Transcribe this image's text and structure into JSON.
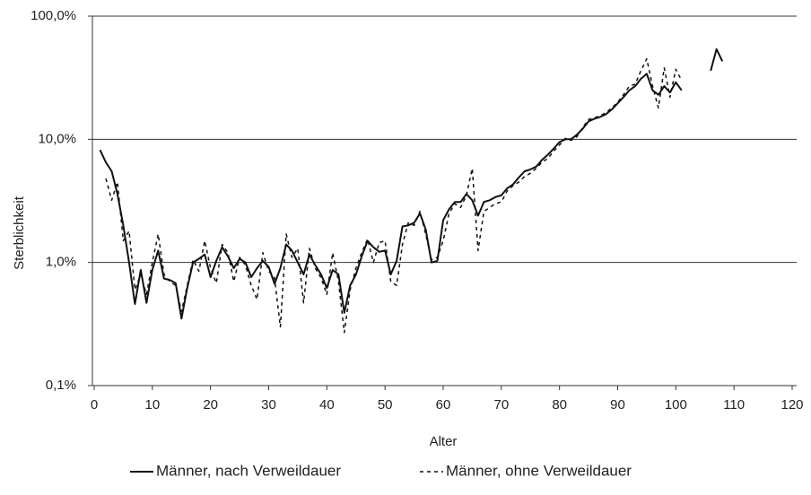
{
  "chart_data": {
    "type": "line",
    "xlabel": "Alter",
    "ylabel": "Sterblichkeit",
    "xlim": [
      0,
      120
    ],
    "xticks": [
      0,
      10,
      20,
      30,
      40,
      50,
      60,
      70,
      80,
      90,
      100,
      110,
      120
    ],
    "ylim": [
      0.1,
      100
    ],
    "yscale": "log",
    "yticks": [
      {
        "value": 0.1,
        "label": "0,1%"
      },
      {
        "value": 1,
        "label": "1,0%"
      },
      {
        "value": 10,
        "label": "10,0%"
      },
      {
        "value": 100,
        "label": "100,0%"
      }
    ],
    "grid": true,
    "legend": "bottom",
    "x": [
      1,
      2,
      3,
      4,
      5,
      6,
      7,
      8,
      9,
      10,
      11,
      12,
      13,
      14,
      15,
      16,
      17,
      18,
      19,
      20,
      21,
      22,
      23,
      24,
      25,
      26,
      27,
      28,
      29,
      30,
      31,
      32,
      33,
      34,
      35,
      36,
      37,
      38,
      39,
      40,
      41,
      42,
      43,
      44,
      45,
      46,
      47,
      48,
      49,
      50,
      51,
      52,
      53,
      54,
      55,
      56,
      57,
      58,
      59,
      60,
      61,
      62,
      63,
      64,
      65,
      66,
      67,
      68,
      69,
      70,
      71,
      72,
      73,
      74,
      75,
      76,
      77,
      78,
      79,
      80,
      81,
      82,
      83,
      84,
      85,
      86,
      87,
      88,
      89,
      90,
      91,
      92,
      93,
      94,
      95,
      96,
      97,
      98,
      99,
      100,
      101,
      102,
      103,
      104,
      105,
      106,
      107,
      108
    ],
    "series": [
      {
        "name": "Männer, nach Verweildauer",
        "color": "#111111",
        "dash": false,
        "values": [
          8.2,
          6.5,
          5.5,
          3.6,
          2.0,
          1.0,
          0.46,
          0.87,
          0.47,
          0.87,
          1.25,
          0.74,
          0.72,
          0.68,
          0.35,
          0.62,
          1.0,
          1.07,
          1.16,
          0.76,
          1.03,
          1.33,
          1.12,
          0.9,
          1.07,
          1.0,
          0.76,
          0.9,
          1.03,
          0.92,
          0.67,
          0.9,
          1.4,
          1.25,
          1.0,
          0.8,
          1.16,
          0.95,
          0.8,
          0.62,
          0.87,
          0.8,
          0.39,
          0.65,
          0.8,
          1.12,
          1.5,
          1.33,
          1.22,
          1.25,
          0.8,
          1.03,
          1.96,
          2.0,
          2.1,
          2.5,
          1.86,
          1.0,
          1.03,
          2.2,
          2.7,
          3.1,
          3.1,
          3.6,
          3.2,
          2.4,
          3.1,
          3.2,
          3.4,
          3.5,
          4.0,
          4.3,
          4.9,
          5.5,
          5.7,
          6.0,
          6.8,
          7.5,
          8.4,
          9.5,
          10,
          10,
          10.9,
          12.2,
          14,
          14.7,
          15.2,
          16,
          17.5,
          19.6,
          22,
          25,
          27,
          31,
          34,
          25,
          23,
          27,
          24,
          29,
          25,
          null,
          null,
          null,
          null,
          36,
          54,
          43
        ]
      },
      {
        "name": "Männer, ohne Verweildauer",
        "color": "#111111",
        "dash": true,
        "values": [
          null,
          4.8,
          3.2,
          4.5,
          1.5,
          1.8,
          0.6,
          0.8,
          0.55,
          1.0,
          1.7,
          0.8,
          0.7,
          0.65,
          0.4,
          0.65,
          1.05,
          0.85,
          1.5,
          0.9,
          0.68,
          1.4,
          1.2,
          0.7,
          1.1,
          0.95,
          0.65,
          0.5,
          1.2,
          0.85,
          0.75,
          0.3,
          1.7,
          1.1,
          1.3,
          0.47,
          1.3,
          0.9,
          0.75,
          0.55,
          1.2,
          0.7,
          0.27,
          0.6,
          0.9,
          1.2,
          1.55,
          1.0,
          1.45,
          1.5,
          0.7,
          0.65,
          1.4,
          2.1,
          2.0,
          2.6,
          1.7,
          1.05,
          1.1,
          1.5,
          2.5,
          3.0,
          2.8,
          3.5,
          5.8,
          1.25,
          2.6,
          2.8,
          3.0,
          3.1,
          3.8,
          4.2,
          4.5,
          5.0,
          5.3,
          5.8,
          6.5,
          7.0,
          8.0,
          9.0,
          10.2,
          9.8,
          10.5,
          12.5,
          14.5,
          15,
          15.5,
          16.5,
          18,
          20,
          23,
          27,
          28,
          36,
          45,
          27,
          18,
          38,
          22,
          37,
          30,
          null,
          null,
          null,
          null,
          null,
          null,
          null
        ]
      }
    ]
  }
}
